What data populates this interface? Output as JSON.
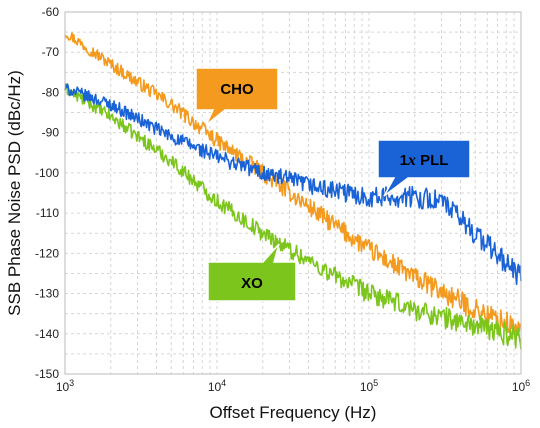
{
  "chart_data": {
    "type": "line",
    "xlabel": "Offset Frequency (Hz)",
    "ylabel": "SSB Phase Noise PSD (dBc/Hz)",
    "x_scale": "log",
    "xlim": [
      1000,
      1000000
    ],
    "ylim": [
      -150,
      -60
    ],
    "x_ticks": [
      {
        "base": "10",
        "exp": "3"
      },
      {
        "base": "10",
        "exp": "4"
      },
      {
        "base": "10",
        "exp": "5"
      },
      {
        "base": "10",
        "exp": "6"
      }
    ],
    "y_ticks": [
      "-60",
      "-70",
      "-80",
      "-90",
      "-100",
      "-110",
      "-120",
      "-130",
      "-140",
      "-150"
    ],
    "grid": true,
    "series": [
      {
        "name": "CHO",
        "color": "#F39A1F",
        "x": [
          1000,
          2000,
          5000,
          10000,
          20000,
          50000,
          100000,
          200000,
          500000,
          1000000
        ],
        "y": [
          -65,
          -73,
          -83,
          -92,
          -100,
          -111,
          -119,
          -126,
          -134,
          -139
        ]
      },
      {
        "name": "1x PLL",
        "color": "#1A63D6",
        "x": [
          1000,
          2000,
          5000,
          10000,
          20000,
          50000,
          100000,
          200000,
          300000,
          500000,
          1000000
        ],
        "y": [
          -79,
          -83,
          -91,
          -96,
          -100,
          -104,
          -106,
          -106,
          -107,
          -115,
          -126
        ]
      },
      {
        "name": "XO",
        "color": "#7CC51C",
        "x": [
          1000,
          2000,
          5000,
          10000,
          20000,
          50000,
          100000,
          200000,
          500000,
          1000000
        ],
        "y": [
          -79,
          -86,
          -97,
          -107,
          -115,
          -124,
          -130,
          -134,
          -138,
          -141
        ]
      }
    ]
  },
  "callouts": {
    "cho": {
      "label": "CHO",
      "fill": "#F39A1F"
    },
    "pll": {
      "num": "1",
      "var": "x",
      "rest": " PLL",
      "fill": "#1A63D6"
    },
    "xo": {
      "label": "XO",
      "fill": "#7CC51C"
    }
  }
}
